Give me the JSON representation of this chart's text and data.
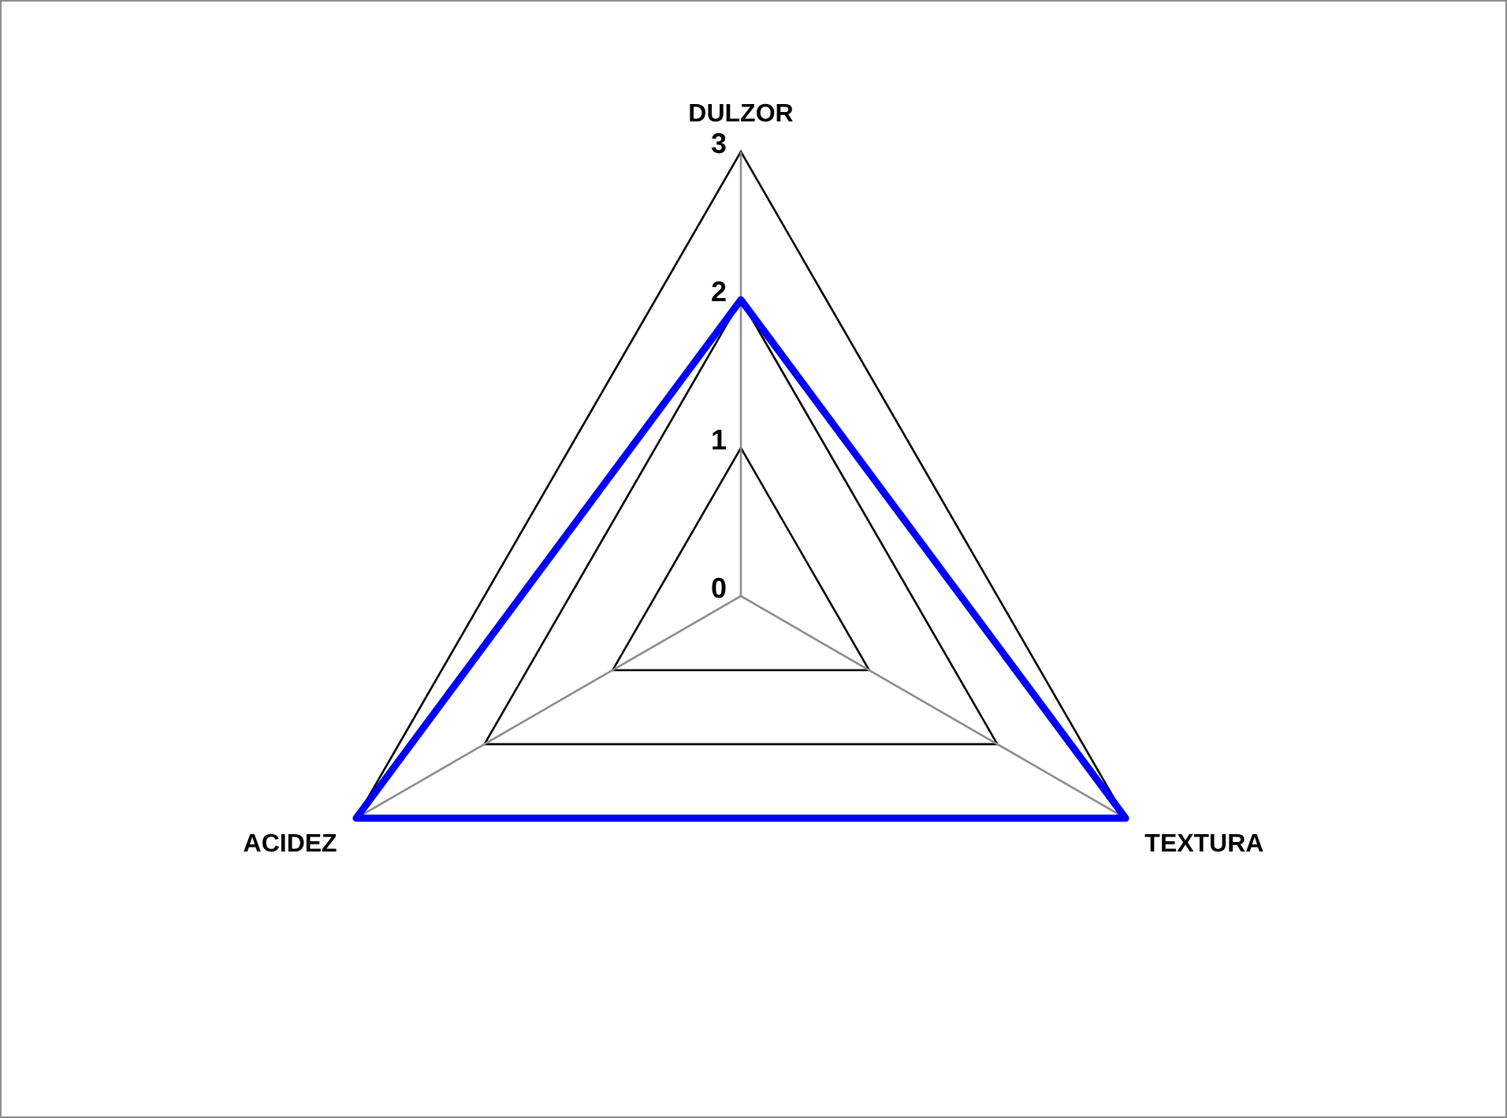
{
  "chart_data": {
    "type": "radar",
    "categories": [
      "DULZOR",
      "TEXTURA",
      "ACIDEZ"
    ],
    "series": [
      {
        "color": "#0000ff",
        "values": [
          2,
          3,
          3
        ]
      }
    ],
    "ylim": [
      0,
      3
    ],
    "yticks": [
      0,
      1,
      2,
      3
    ],
    "grid": true,
    "marker": "none"
  }
}
